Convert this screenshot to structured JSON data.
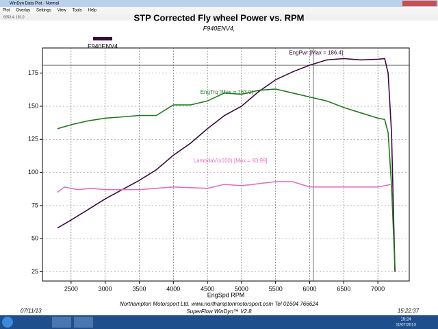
{
  "window": {
    "title": "WinDyn Data Plot - Normal",
    "menu": [
      "Plot",
      "Overlay",
      "Settings",
      "View",
      "Tools",
      "Help"
    ]
  },
  "cursor_label": "6053.4, 181.0",
  "chart_data": {
    "type": "line",
    "title": "STP Corrected Fly wheel Power vs. RPM",
    "subtitle": "F940ENV4,",
    "legend_label": "F940ENV4",
    "legend_color": "#3a0a3a",
    "x_label": "EngSpd  RPM",
    "xlim": [
      2080,
      7460
    ],
    "ylim": [
      18,
      194
    ],
    "xticks": [
      2500,
      3000,
      3500,
      4000,
      4500,
      5000,
      5500,
      6000,
      6500,
      7000
    ],
    "yticks": [
      25,
      50,
      75,
      100,
      125,
      150,
      175
    ],
    "grid": true,
    "cursor": {
      "x": 6053.4,
      "y": 181.0
    },
    "series": [
      {
        "name": "EngPwr [Max = 186.4]",
        "color": "#3a0a3a",
        "x": [
          2300,
          2500,
          2750,
          3000,
          3250,
          3500,
          3750,
          4000,
          4250,
          4500,
          4750,
          5000,
          5250,
          5500,
          5750,
          6000,
          6250,
          6500,
          6750,
          7000,
          7100,
          7150,
          7200,
          7250
        ],
        "values": [
          58,
          64,
          72,
          80,
          87,
          94,
          102,
          113,
          122,
          133,
          143,
          150,
          161,
          170,
          176,
          181,
          185,
          186,
          185,
          185.5,
          186,
          175,
          130,
          25
        ]
      },
      {
        "name": "EngTrq [Max = 163.0]",
        "color": "#1e7a1e",
        "x": [
          2300,
          2500,
          2750,
          3000,
          3250,
          3500,
          3750,
          4000,
          4250,
          4500,
          4750,
          5000,
          5250,
          5500,
          5750,
          6000,
          6250,
          6500,
          6750,
          7000,
          7100,
          7150,
          7200,
          7250
        ],
        "values": [
          133,
          136,
          139,
          141,
          142,
          143,
          143,
          151,
          151,
          154,
          160,
          159,
          162,
          163,
          160,
          157,
          154,
          149,
          145,
          141,
          140,
          130,
          90,
          28
        ]
      },
      {
        "name": "LambdaV(x100) [Max = 93.99]",
        "color": "#e070c0",
        "x": [
          2300,
          2400,
          2600,
          2800,
          3000,
          3500,
          4000,
          4500,
          4750,
          5000,
          5500,
          5750,
          6000,
          6500,
          7000,
          7200
        ],
        "values": [
          85,
          89,
          87,
          88,
          87,
          87,
          89,
          88,
          91,
          90,
          93,
          93,
          89,
          89,
          89,
          91
        ]
      }
    ]
  },
  "footer": {
    "date": "07/11/13",
    "company": "Northampton Motorsport Ltd. www.northamptonmotorsport.com Tel 01604 766624",
    "software": "SuperFlow WinDyn™ V2.8",
    "time": "15:22:37"
  },
  "taskbar": {
    "time": "15:24",
    "date": "11/07/2013"
  }
}
